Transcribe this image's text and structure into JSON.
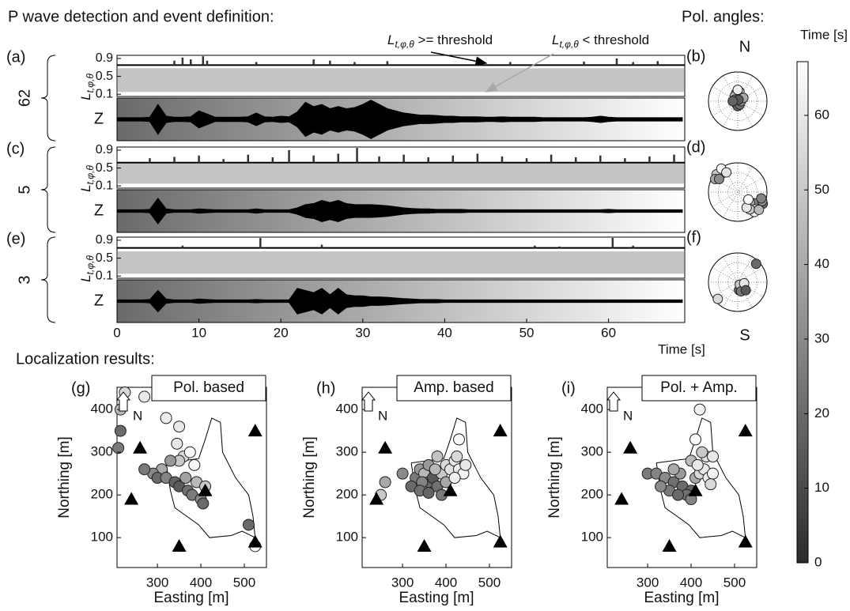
{
  "chart_data": [
    {
      "type": "waveform",
      "title": "P wave detection and event definition:",
      "xlim": [
        0,
        69.3
      ],
      "xticks": [
        0,
        10,
        20,
        30,
        40,
        50,
        60
      ],
      "xlabel": "Time [s]",
      "x": [
        0,
        1,
        2,
        3,
        4,
        5,
        6,
        7,
        8,
        9,
        10,
        11,
        12,
        13,
        14,
        15,
        16,
        17,
        18,
        19,
        20,
        21,
        22,
        23,
        24,
        25,
        26,
        27,
        28,
        29,
        30,
        31,
        32,
        33,
        34,
        35,
        36,
        37,
        38,
        39,
        40,
        41,
        42,
        43,
        44,
        45,
        46,
        47,
        48,
        49,
        50,
        51,
        52,
        53,
        54,
        55,
        56,
        57,
        58,
        59,
        60,
        61,
        62,
        63,
        64,
        65,
        66,
        67,
        68,
        69
      ],
      "l_ylim": [
        0.05,
        0.97
      ],
      "l_yticks": [
        0.1,
        0.5,
        0.9
      ],
      "l_label": "L",
      "l_label_sub": "t,φ,θ",
      "z_label": "Z",
      "z_ylim": [
        -1,
        1
      ],
      "annotations": [
        {
          "symbol": "L",
          "sub": "t,φ,θ",
          "text": " >= threshold",
          "color": "#000000"
        },
        {
          "symbol": "L",
          "sub": "t,φ,θ",
          "text": " < threshold",
          "color": "#a8a8a8"
        }
      ],
      "panels": [
        {
          "label": "(a)",
          "count": 62,
          "threshold": 0.75,
          "noise_range": [
            0.15,
            0.68
          ],
          "spikes": {
            "x": [
              7,
              8,
              9,
              10.5,
              11,
              17,
              24,
              26,
              29,
              33,
              48,
              57,
              61,
              63,
              66
            ],
            "values": [
              0.85,
              0.92,
              0.88,
              0.95,
              0.85,
              0.82,
              0.88,
              0.85,
              0.82,
              0.84,
              0.82,
              0.83,
              0.9,
              0.82,
              0.84
            ]
          },
          "z_envelope": [
            0.08,
            0.08,
            0.08,
            0.08,
            0.1,
            0.7,
            0.15,
            0.1,
            0.1,
            0.12,
            0.4,
            0.25,
            0.1,
            0.1,
            0.1,
            0.1,
            0.12,
            0.3,
            0.12,
            0.1,
            0.15,
            0.12,
            0.35,
            0.8,
            0.6,
            0.7,
            0.5,
            0.6,
            0.5,
            0.55,
            0.7,
            0.9,
            0.7,
            0.5,
            0.4,
            0.3,
            0.25,
            0.2,
            0.2,
            0.18,
            0.15,
            0.15,
            0.12,
            0.12,
            0.12,
            0.1,
            0.1,
            0.12,
            0.1,
            0.1,
            0.1,
            0.1,
            0.08,
            0.08,
            0.08,
            0.08,
            0.08,
            0.08,
            0.1,
            0.15,
            0.1,
            0.08,
            0.08,
            0.08,
            0.08,
            0.08,
            0.08,
            0.08,
            0.08,
            0.08
          ]
        },
        {
          "label": "(c)",
          "count": 5,
          "threshold": 0.62,
          "noise_range": [
            0.15,
            0.6
          ],
          "spikes": {
            "x": [
              4,
              7,
              10,
              13,
              16,
              19,
              21,
              24,
              27,
              29.3,
              32,
              35,
              38,
              41,
              44,
              47,
              50,
              53,
              56,
              59,
              62,
              65,
              68
            ],
            "values": [
              0.72,
              0.75,
              0.78,
              0.7,
              0.8,
              0.74,
              0.9,
              0.78,
              0.82,
              0.95,
              0.76,
              0.8,
              0.74,
              0.78,
              0.82,
              0.76,
              0.72,
              0.8,
              0.74,
              0.78,
              0.72,
              0.76,
              0.8
            ]
          },
          "z_envelope": [
            0.06,
            0.06,
            0.06,
            0.06,
            0.08,
            0.6,
            0.1,
            0.06,
            0.06,
            0.06,
            0.1,
            0.08,
            0.06,
            0.06,
            0.06,
            0.06,
            0.06,
            0.1,
            0.06,
            0.06,
            0.06,
            0.06,
            0.15,
            0.3,
            0.35,
            0.5,
            0.4,
            0.5,
            0.35,
            0.3,
            0.3,
            0.3,
            0.28,
            0.25,
            0.2,
            0.15,
            0.12,
            0.1,
            0.1,
            0.08,
            0.08,
            0.08,
            0.08,
            0.06,
            0.06,
            0.06,
            0.06,
            0.06,
            0.06,
            0.06,
            0.06,
            0.06,
            0.06,
            0.06,
            0.06,
            0.06,
            0.06,
            0.06,
            0.06,
            0.06,
            0.08,
            0.06,
            0.06,
            0.06,
            0.06,
            0.06,
            0.06,
            0.06,
            0.06,
            0.06
          ]
        },
        {
          "label": "(e)",
          "count": 3,
          "threshold": 0.73,
          "noise_range": [
            0.15,
            0.65
          ],
          "spikes": {
            "x": [
              8,
              17.5,
              25,
              51,
              54,
              60.5,
              63
            ],
            "values": [
              0.78,
              0.95,
              0.8,
              0.78,
              0.76,
              0.97,
              0.78
            ]
          },
          "z_envelope": [
            0.06,
            0.06,
            0.06,
            0.06,
            0.08,
            0.5,
            0.1,
            0.06,
            0.06,
            0.06,
            0.1,
            0.08,
            0.06,
            0.06,
            0.06,
            0.06,
            0.06,
            0.08,
            0.06,
            0.06,
            0.06,
            0.06,
            0.6,
            0.5,
            0.4,
            0.6,
            0.3,
            0.6,
            0.3,
            0.25,
            0.25,
            0.2,
            0.2,
            0.18,
            0.15,
            0.12,
            0.1,
            0.08,
            0.08,
            0.08,
            0.06,
            0.06,
            0.06,
            0.06,
            0.06,
            0.06,
            0.06,
            0.06,
            0.06,
            0.06,
            0.06,
            0.06,
            0.06,
            0.06,
            0.06,
            0.06,
            0.06,
            0.06,
            0.06,
            0.06,
            0.06,
            0.06,
            0.06,
            0.06,
            0.06,
            0.06,
            0.06,
            0.06,
            0.06,
            0.06
          ]
        }
      ]
    },
    {
      "type": "polar",
      "title": "Pol. angles:",
      "top_label": "N",
      "bottom_label": "S",
      "rlim": [
        0,
        90
      ],
      "panels": [
        {
          "label": "(b)",
          "az": [
            0,
            350,
            10,
            20,
            330,
            300,
            200,
            180,
            150,
            90,
            60,
            30,
            270,
            0
          ],
          "inc": [
            20,
            25,
            30,
            15,
            18,
            10,
            10,
            15,
            12,
            10,
            20,
            5,
            15,
            35
          ],
          "time": [
            60,
            65,
            55,
            50,
            45,
            30,
            25,
            20,
            22,
            35,
            40,
            15,
            18,
            62
          ]
        },
        {
          "label": "(d)",
          "az": [
            315,
            320,
            310,
            300,
            325,
            330,
            305,
            120,
            125,
            130,
            135,
            140,
            115,
            110,
            145,
            130,
            150,
            105,
            125
          ],
          "inc": [
            80,
            75,
            85,
            80,
            88,
            70,
            70,
            70,
            60,
            50,
            75,
            80,
            85,
            80,
            65,
            85,
            55,
            75,
            40
          ],
          "time": [
            60,
            62,
            50,
            40,
            66,
            58,
            30,
            25,
            30,
            40,
            55,
            62,
            20,
            35,
            50,
            45,
            60,
            28,
            65
          ]
        },
        {
          "label": "(f)",
          "az": [
            120,
            150,
            170,
            140,
            160,
            100,
            135,
            45,
            230
          ],
          "inc": [
            15,
            20,
            25,
            10,
            30,
            20,
            35,
            80,
            80
          ],
          "time": [
            30,
            40,
            20,
            50,
            25,
            60,
            15,
            20,
            55
          ]
        }
      ]
    },
    {
      "type": "colorbar",
      "label": "Time [s]",
      "ylim": [
        0,
        67.2
      ],
      "yticks": [
        0,
        10,
        20,
        30,
        40,
        50,
        60
      ],
      "colors": [
        "#2b2b2b",
        "#ffffff"
      ]
    },
    {
      "type": "scatter",
      "title": "Localization results:",
      "xlabel": "Easting [m]",
      "ylabel": "Northing [m]",
      "xlim": [
        207,
        551
      ],
      "ylim": [
        30,
        452
      ],
      "xticks": [
        300,
        400,
        500
      ],
      "yticks": [
        100,
        200,
        300,
        400
      ],
      "north_label": "N",
      "stations": {
        "x": [
          260,
          240,
          350,
          410,
          525,
          525
        ],
        "y": [
          310,
          190,
          80,
          210,
          350,
          90
        ]
      },
      "outline": {
        "x": [
          320,
          395,
          410,
          425,
          445,
          450,
          480,
          510,
          520,
          525,
          495,
          470,
          420,
          395,
          340,
          330,
          320
        ],
        "y": [
          275,
          285,
          330,
          380,
          370,
          300,
          240,
          200,
          150,
          100,
          115,
          105,
          100,
          130,
          170,
          210,
          275
        ]
      },
      "panels": [
        {
          "label": "(g)",
          "title": "Pol. based",
          "x": [
            225,
            270,
            215,
            215,
            210,
            320,
            350,
            345,
            360,
            375,
            385,
            350,
            330,
            310,
            290,
            270,
            300,
            320,
            340,
            350,
            370,
            380,
            400,
            405,
            365,
            390,
            410,
            510,
            525
          ],
          "y": [
            440,
            430,
            400,
            350,
            310,
            380,
            360,
            320,
            290,
            300,
            270,
            280,
            280,
            260,
            250,
            260,
            240,
            240,
            230,
            220,
            210,
            200,
            190,
            180,
            240,
            230,
            220,
            130,
            80
          ],
          "time": [
            55,
            60,
            45,
            20,
            25,
            62,
            60,
            60,
            55,
            65,
            64,
            50,
            35,
            40,
            30,
            25,
            20,
            28,
            18,
            15,
            22,
            25,
            30,
            20,
            38,
            45,
            50,
            20,
            66
          ]
        },
        {
          "label": "(h)",
          "title": "Amp. based",
          "x": [
            260,
            250,
            300,
            330,
            340,
            350,
            360,
            370,
            380,
            390,
            400,
            410,
            420,
            430,
            440,
            430,
            425,
            380,
            360,
            345,
            320,
            340,
            360,
            400,
            420,
            445,
            390,
            375
          ],
          "y": [
            230,
            200,
            250,
            240,
            260,
            250,
            230,
            240,
            220,
            250,
            270,
            260,
            280,
            260,
            250,
            330,
            290,
            290,
            270,
            230,
            220,
            210,
            205,
            230,
            240,
            270,
            200,
            260
          ],
          "time": [
            40,
            50,
            30,
            25,
            35,
            45,
            20,
            15,
            22,
            50,
            55,
            58,
            60,
            62,
            64,
            65,
            55,
            48,
            35,
            28,
            20,
            22,
            18,
            40,
            62,
            60,
            25,
            45
          ]
        },
        {
          "label": "(i)",
          "title": "Pol. + Amp.",
          "x": [
            300,
            320,
            340,
            360,
            380,
            400,
            390,
            410,
            420,
            430,
            440,
            450,
            435,
            425,
            400,
            410,
            420,
            375,
            360,
            350,
            370,
            400,
            450,
            445,
            415,
            330
          ],
          "y": [
            250,
            250,
            240,
            230,
            220,
            210,
            200,
            240,
            250,
            260,
            240,
            250,
            290,
            300,
            280,
            330,
            400,
            250,
            260,
            210,
            200,
            190,
            290,
            225,
            270,
            220
          ],
          "time": [
            25,
            28,
            30,
            22,
            20,
            18,
            22,
            40,
            55,
            60,
            62,
            64,
            58,
            50,
            45,
            66,
            62,
            35,
            40,
            25,
            20,
            28,
            60,
            55,
            60,
            30
          ]
        }
      ]
    }
  ]
}
